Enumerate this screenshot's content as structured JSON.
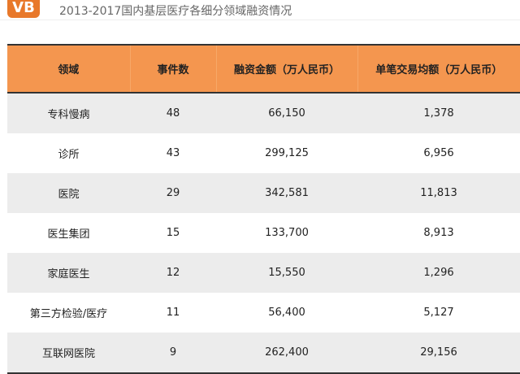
{
  "logo_text": "VB",
  "title": "2013-2017国内基层医疗各细分领域融资情况",
  "table": {
    "headers": [
      "领域",
      "事件数",
      "融资金额（万人民币）",
      "单笔交易均额（万人民币）"
    ],
    "rows": [
      [
        "专科慢病",
        "48",
        "66,150",
        "1,378"
      ],
      [
        "诊所",
        "43",
        "299,125",
        "6,956"
      ],
      [
        "医院",
        "29",
        "342,581",
        "11,813"
      ],
      [
        "医生集团",
        "15",
        "133,700",
        "8,913"
      ],
      [
        "家庭医生",
        "12",
        "15,550",
        "1,296"
      ],
      [
        "第三方检验/医疗",
        "11",
        "56,400",
        "5,127"
      ],
      [
        "互联网医院",
        "9",
        "262,400",
        "29,156"
      ]
    ]
  }
}
